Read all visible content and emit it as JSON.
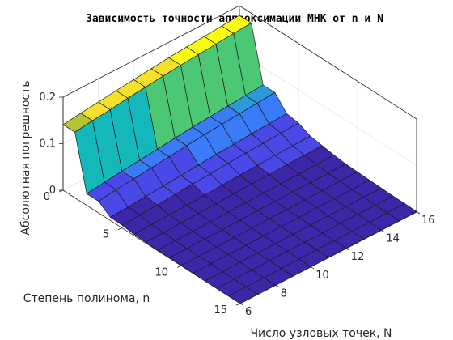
{
  "chart_data": {
    "type": "surface",
    "title": "Зависимость точности аппроксимации МНК от n и N",
    "xlabel": "Число узловых точек, N",
    "ylabel": "Степень полинома, n",
    "zlabel": "Абсолютная погрешность",
    "N_values": [
      6,
      7,
      8,
      9,
      10,
      11,
      12,
      13,
      14,
      15,
      16
    ],
    "n_values": [
      0,
      1,
      2,
      3,
      4,
      5,
      6,
      7,
      8,
      9,
      10,
      11,
      12,
      13,
      14,
      15
    ],
    "error": [
      [
        0.141,
        0.146,
        0.15,
        0.155,
        0.159,
        0.163,
        0.167,
        0.17,
        0.173,
        0.176,
        0.179
      ],
      [
        0.141,
        0.146,
        0.15,
        0.155,
        0.159,
        0.163,
        0.167,
        0.17,
        0.173,
        0.176,
        0.179
      ],
      [
        0.025,
        0.03,
        0.034,
        0.038,
        0.042,
        0.046,
        0.05,
        0.053,
        0.056,
        0.059,
        0.062
      ],
      [
        0.025,
        0.03,
        0.034,
        0.038,
        0.042,
        0.046,
        0.05,
        0.053,
        0.056,
        0.059,
        0.062
      ],
      [
        0.007,
        0.009,
        0.012,
        0.015,
        0.018,
        0.021,
        0.024,
        0.026,
        0.029,
        0.031,
        0.033
      ],
      [
        0.006,
        0.008,
        0.01,
        0.013,
        0.016,
        0.018,
        0.021,
        0.023,
        0.025,
        0.027,
        0.029
      ],
      [
        0.003,
        0.004,
        0.005,
        0.006,
        0.008,
        0.01,
        0.012,
        0.013,
        0.015,
        0.016,
        0.017
      ],
      [
        0.002,
        0.003,
        0.004,
        0.005,
        0.006,
        0.008,
        0.009,
        0.01,
        0.011,
        0.012,
        0.013
      ],
      [
        0.001,
        0.002,
        0.002,
        0.003,
        0.004,
        0.005,
        0.006,
        0.006,
        0.007,
        0.008,
        0.009
      ],
      [
        0.001,
        0.001,
        0.002,
        0.002,
        0.003,
        0.004,
        0.004,
        0.005,
        0.005,
        0.006,
        0.006
      ],
      [
        0.001,
        0.001,
        0.001,
        0.002,
        0.002,
        0.003,
        0.003,
        0.004,
        0.004,
        0.005,
        0.005
      ],
      [
        0.0,
        0.001,
        0.001,
        0.001,
        0.002,
        0.002,
        0.002,
        0.003,
        0.003,
        0.003,
        0.004
      ],
      [
        0.0,
        0.0,
        0.001,
        0.001,
        0.001,
        0.002,
        0.002,
        0.002,
        0.002,
        0.003,
        0.003
      ],
      [
        0.0,
        0.0,
        0.0,
        0.001,
        0.001,
        0.001,
        0.001,
        0.002,
        0.002,
        0.002,
        0.002
      ],
      [
        0.0,
        0.0,
        0.0,
        0.0,
        0.001,
        0.001,
        0.001,
        0.001,
        0.001,
        0.002,
        0.002
      ],
      [
        0.0,
        0.0,
        0.0,
        0.0,
        0.0,
        0.001,
        0.001,
        0.001,
        0.001,
        0.001,
        0.001
      ]
    ],
    "xlim": [
      6,
      16
    ],
    "ylim": [
      0,
      15
    ],
    "zlim": [
      0,
      0.2
    ],
    "xticks": [
      "6",
      "8",
      "10",
      "12",
      "14",
      "16"
    ],
    "yticks": [
      "0",
      "5",
      "10",
      "15"
    ],
    "zticks": [
      "0",
      "0.1",
      "0.2"
    ],
    "colormap": [
      "#3e26a8",
      "#4a49e8",
      "#3a7bf7",
      "#2a9ad9",
      "#14b8b8",
      "#4cc875",
      "#b5c435",
      "#f5e02b",
      "#f9fb0e"
    ],
    "grid": true,
    "view": "3d-surface"
  }
}
